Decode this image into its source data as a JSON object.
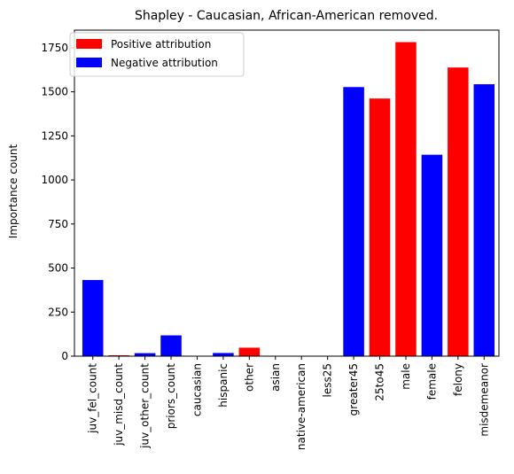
{
  "chart_data": {
    "type": "bar",
    "title": "Shapley - Caucasian, African-American removed.",
    "xlabel": "",
    "ylabel": "Importance count",
    "ylim": [
      0,
      1850
    ],
    "yticks": [
      0,
      250,
      500,
      750,
      1000,
      1250,
      1500,
      1750
    ],
    "categories": [
      "juv_fel_count",
      "juv_misd_count",
      "juv_other_count",
      "priors_count",
      "caucasian",
      "hispanic",
      "other",
      "asian",
      "native-american",
      "less25",
      "greater45",
      "25to45",
      "male",
      "female",
      "felony",
      "misdemeanor"
    ],
    "values": [
      432,
      5,
      17,
      118,
      0,
      18,
      48,
      0,
      0,
      0,
      1527,
      1462,
      1782,
      1143,
      1638,
      1543
    ],
    "attribution": [
      "negative",
      "positive",
      "negative",
      "negative",
      "negative",
      "negative",
      "positive",
      "negative",
      "negative",
      "negative",
      "negative",
      "positive",
      "positive",
      "negative",
      "positive",
      "negative"
    ],
    "legend": [
      {
        "name": "Positive attribution",
        "color": "#ff0000"
      },
      {
        "name": "Negative attribution",
        "color": "#0000ff"
      }
    ],
    "legend_position": "top-left",
    "grid": false,
    "colors": {
      "positive": "#ff0000",
      "negative": "#0000ff"
    }
  }
}
